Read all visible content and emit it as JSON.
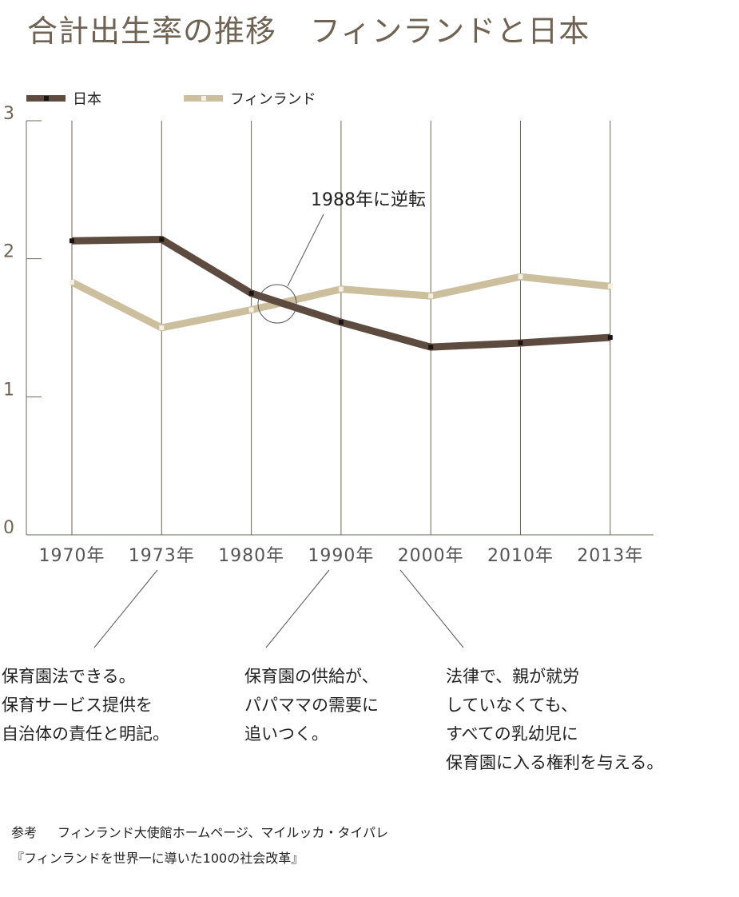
{
  "title": {
    "main": "合計出生率の推移",
    "sub": "フィンランドと日本"
  },
  "colors": {
    "japan": "#5e4b40",
    "finland": "#cbbf9e",
    "grid": "#6e6354"
  },
  "chart_data": {
    "type": "line",
    "categories": [
      "1970年",
      "1973年",
      "1980年",
      "1990年",
      "2000年",
      "2010年",
      "2013年"
    ],
    "yticks": [
      0,
      1,
      2,
      3
    ],
    "ylim": [
      0,
      3
    ],
    "series": [
      {
        "name": "日本",
        "values": [
          2.13,
          2.14,
          1.75,
          1.54,
          1.36,
          1.39,
          1.43
        ]
      },
      {
        "name": "フィンランド",
        "values": [
          1.83,
          1.5,
          1.63,
          1.78,
          1.73,
          1.87,
          1.8
        ]
      }
    ],
    "legend": "top-left",
    "annotation": {
      "text": "1988年に逆転"
    }
  },
  "notes": [
    {
      "lines": [
        "保育園法できる。",
        "保育サービス提供を",
        "自治体の責任と明記。"
      ]
    },
    {
      "lines": [
        "保育園の供給が、",
        "パパママの需要に",
        "追いつく。"
      ]
    },
    {
      "lines": [
        "法律で、親が就労",
        "していなくても、",
        "すべての乳幼児に",
        "保育園に入る権利を与える。"
      ]
    }
  ],
  "source": {
    "label": "参考",
    "line1": "フィンランド大使館ホームページ、マイルッカ・タイパレ",
    "line2": "『フィンランドを世界一に導いた100の社会改革』"
  }
}
